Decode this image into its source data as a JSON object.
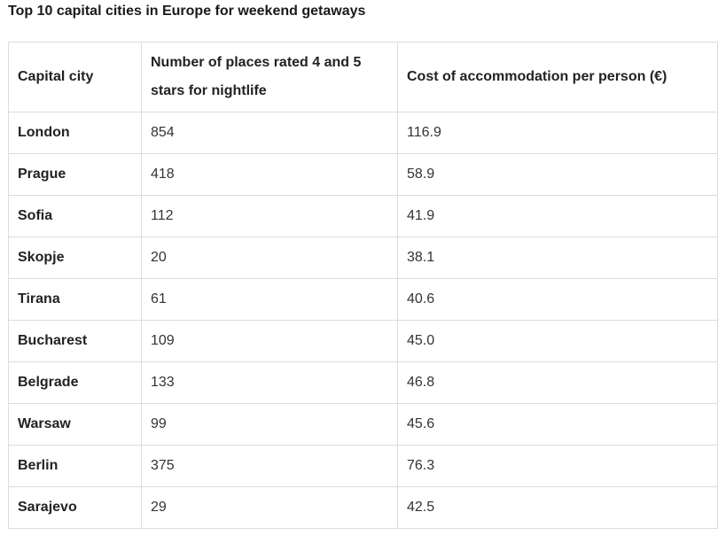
{
  "title": "Top 10 capital cities in Europe for weekend getaways",
  "table": {
    "headers": [
      "Capital city",
      "Number of places rated 4 and 5 stars for nightlife",
      "Cost of accommodation per person (€)"
    ],
    "rows": [
      [
        "London",
        "854",
        "116.9"
      ],
      [
        "Prague",
        "418",
        "58.9"
      ],
      [
        "Sofia",
        "112",
        "41.9"
      ],
      [
        "Skopje",
        "20",
        "38.1"
      ],
      [
        "Tirana",
        "61",
        "40.6"
      ],
      [
        "Bucharest",
        "109",
        "45.0"
      ],
      [
        "Belgrade",
        "133",
        "46.8"
      ],
      [
        "Warsaw",
        "99",
        "45.6"
      ],
      [
        "Berlin",
        "375",
        "76.3"
      ],
      [
        "Sarajevo",
        "29",
        "42.5"
      ]
    ]
  },
  "colors": {
    "border": "#dcdcdc",
    "text": "#222222"
  }
}
